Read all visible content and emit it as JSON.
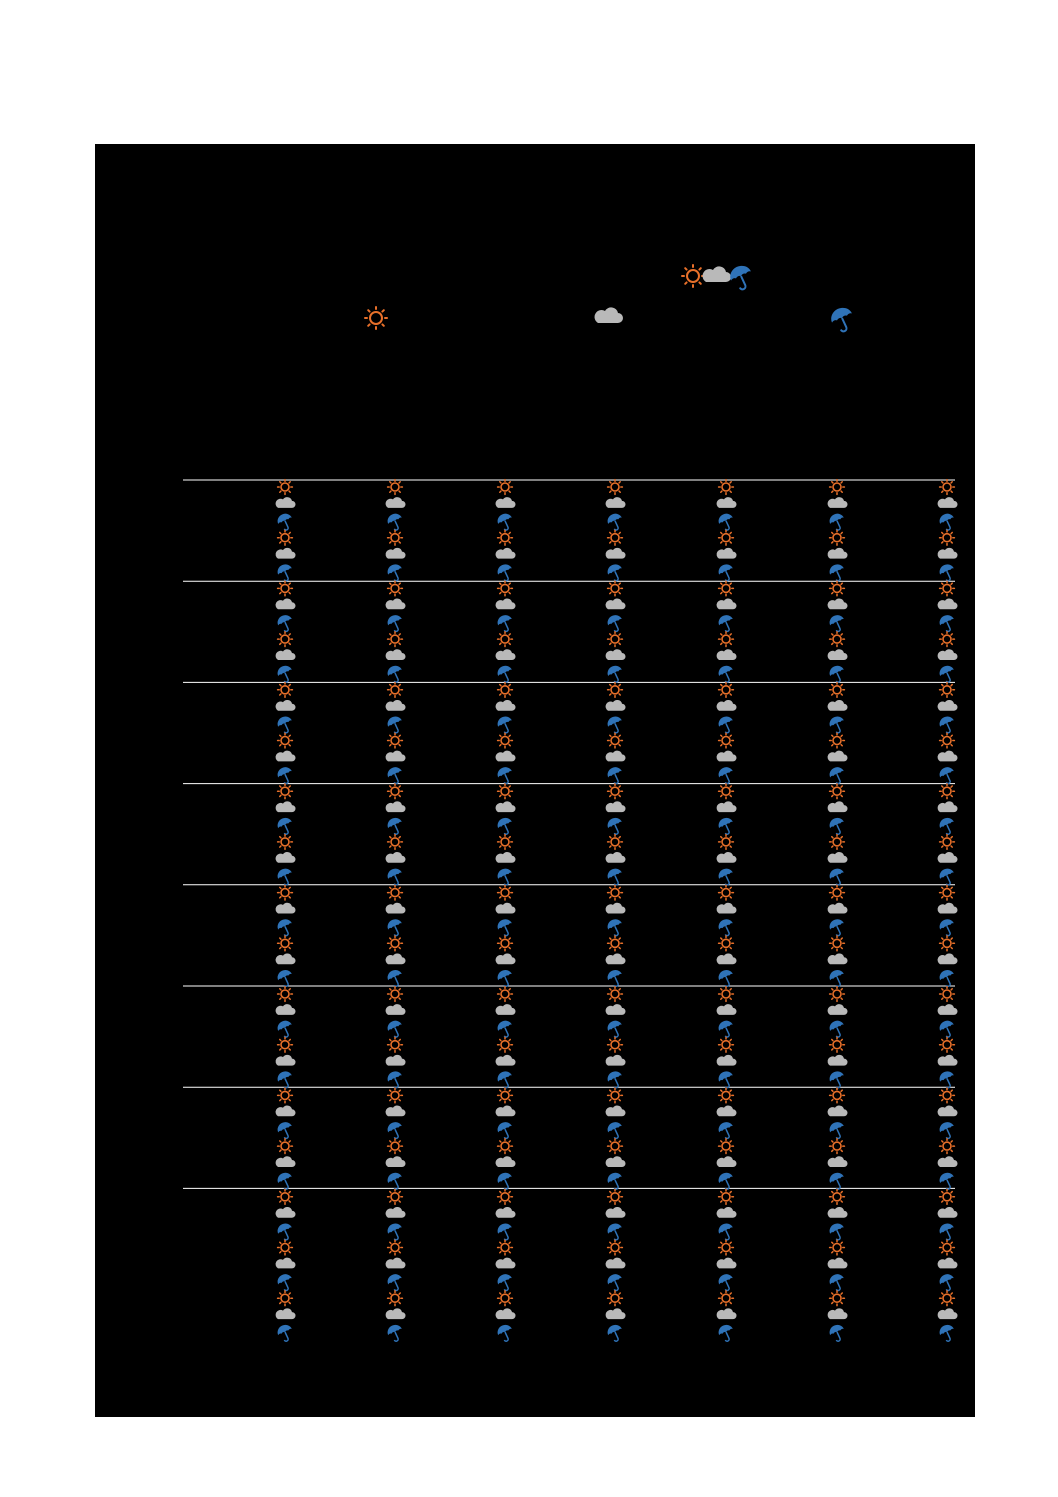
{
  "icons": {
    "sun": "sun-icon",
    "cloud": "cloud-icon",
    "umbrella": "umbrella-icon"
  },
  "colors": {
    "background": "#000000",
    "sun": "#e8702a",
    "cloud": "#b9b9b9",
    "umbrella": "#2f73b8",
    "rule": "#ffffff"
  },
  "header": {
    "symbols": [
      "sun-icon",
      "cloud-icon",
      "umbrella-icon"
    ]
  },
  "legend": {
    "items": [
      "sun-icon",
      "cloud-icon",
      "umbrella-icon"
    ]
  },
  "grid": {
    "weeks": 8,
    "days_per_week": 7,
    "slots_per_day": 6,
    "last_week_slots": 9,
    "slot_pattern": [
      "sun-icon",
      "cloud-icon",
      "umbrella-icon"
    ]
  }
}
